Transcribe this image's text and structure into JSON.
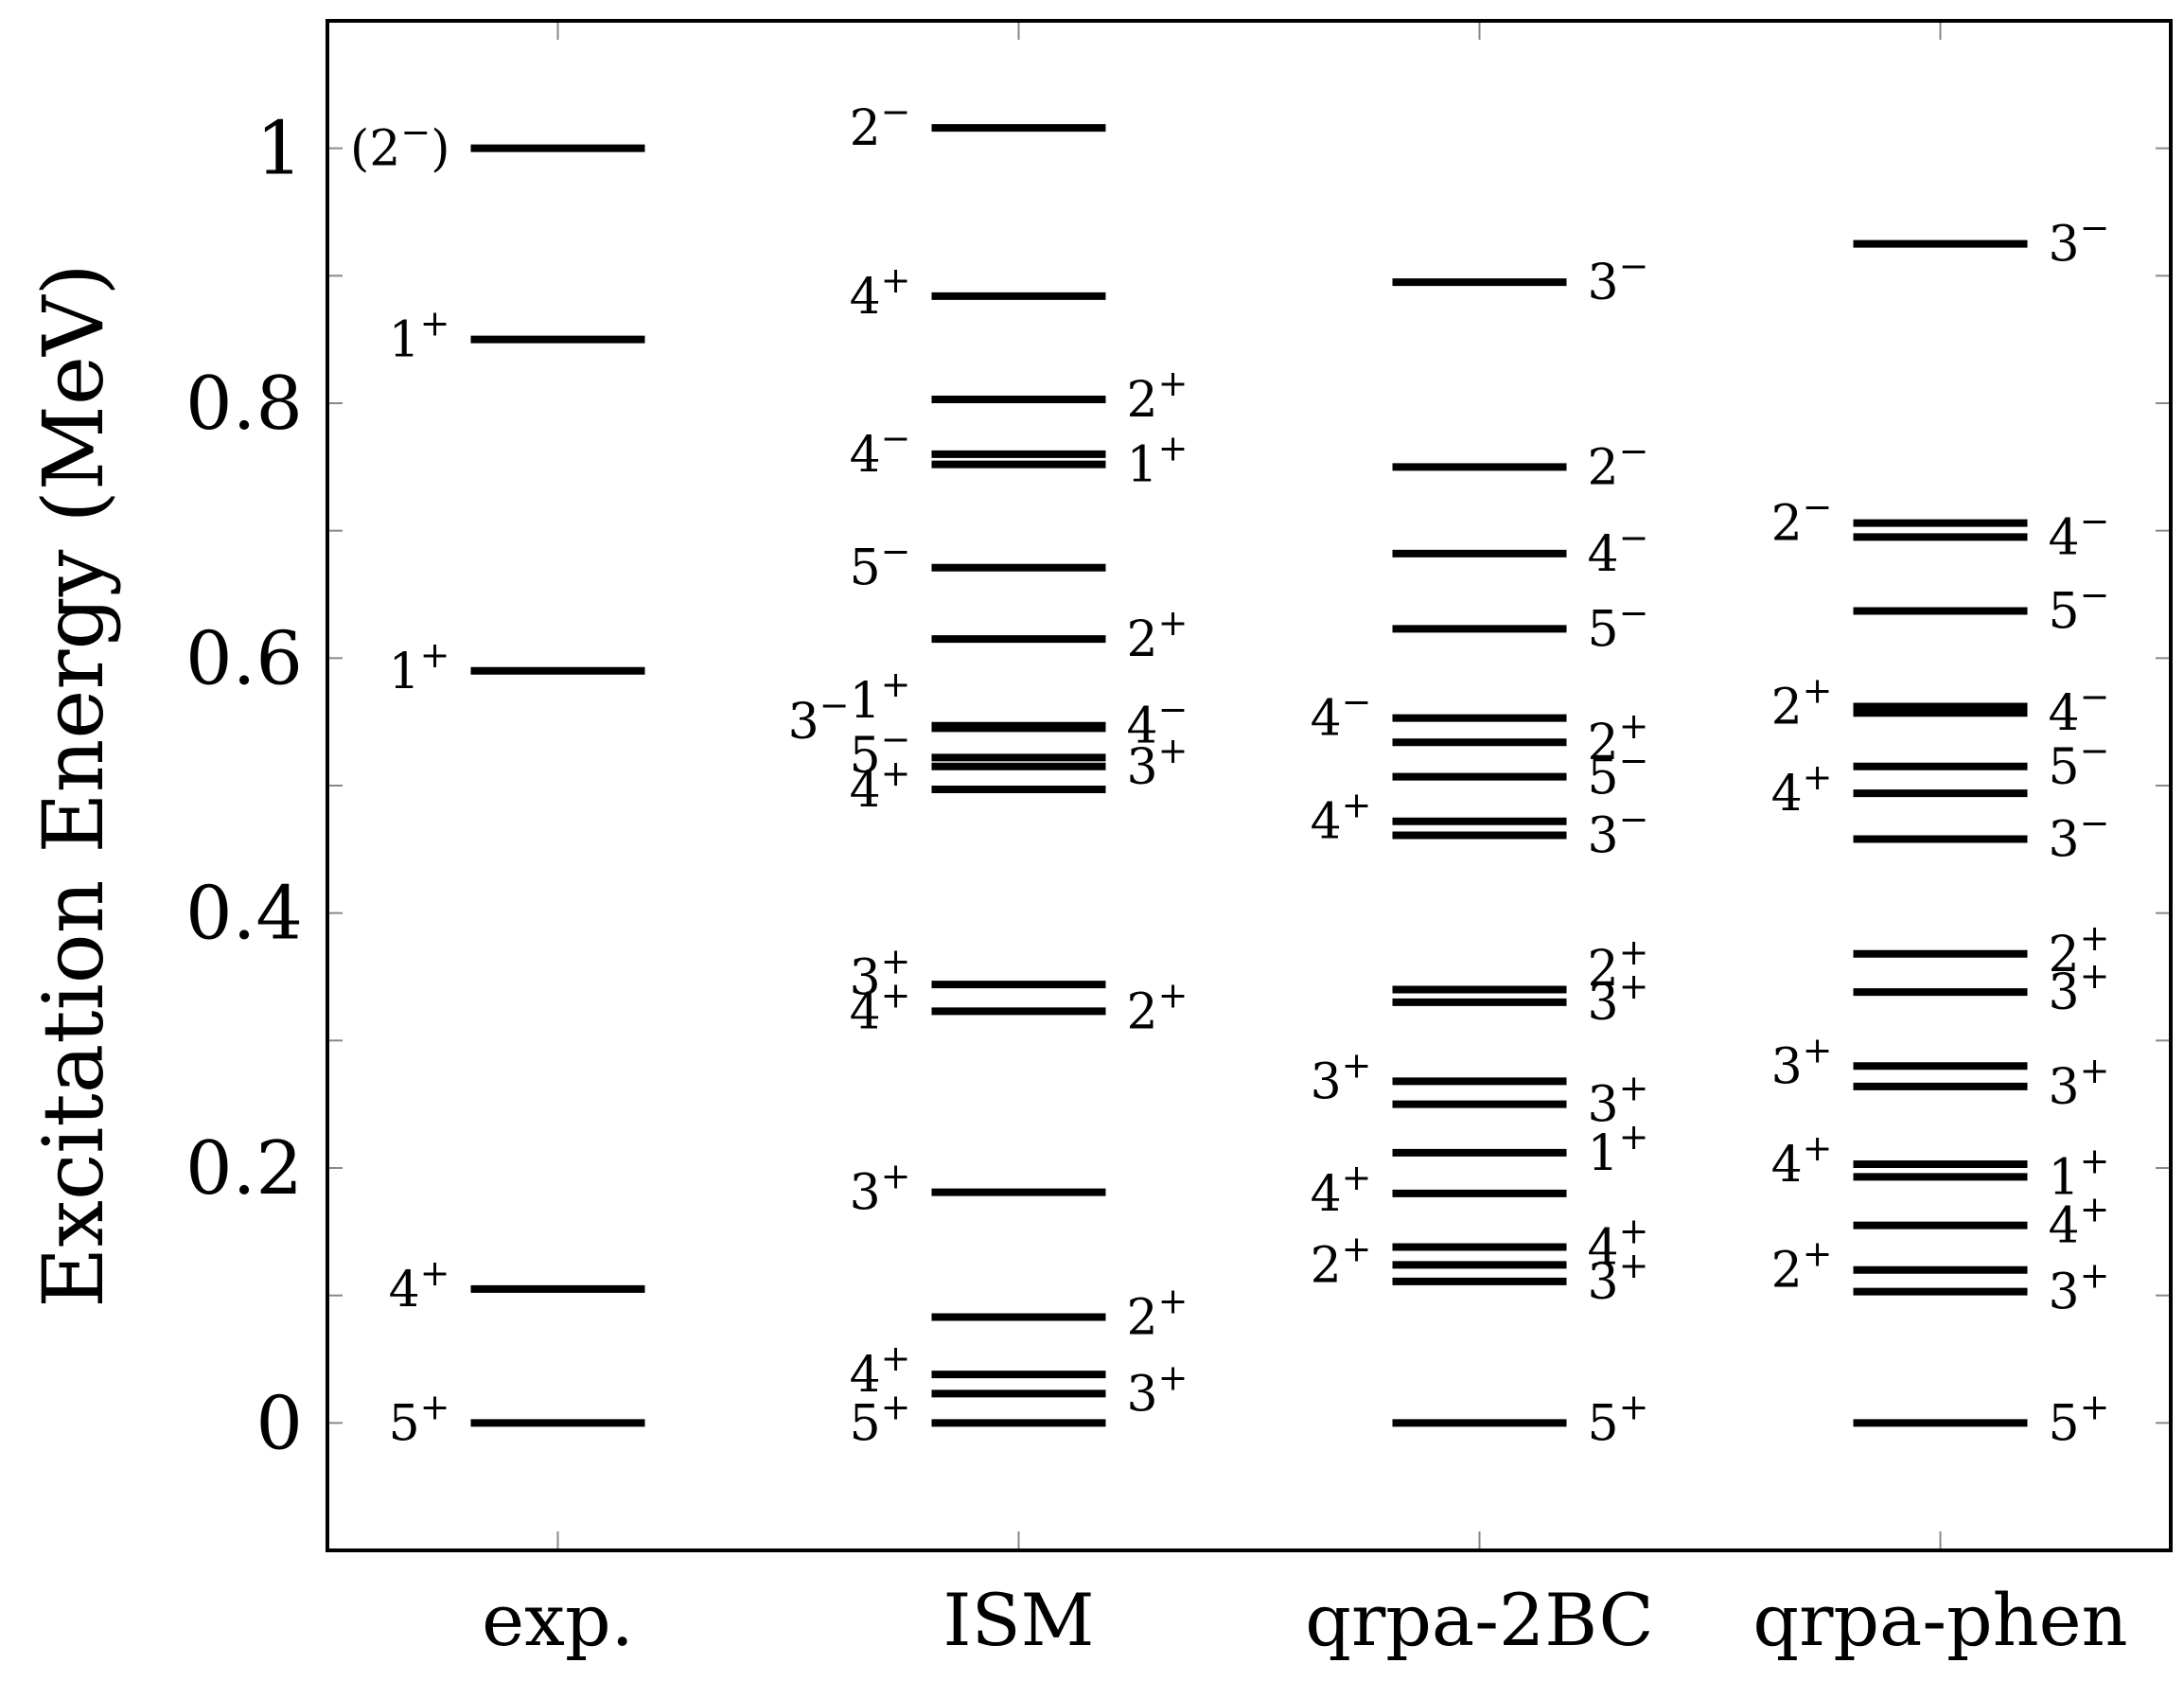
{
  "chart_data": {
    "type": "level-scheme",
    "title": "",
    "xlabel": "",
    "ylabel": "Excitation Energy (MeV)",
    "ylim": [
      -0.1,
      1.1
    ],
    "yticks": [
      {
        "value": 0,
        "label": "0"
      },
      {
        "value": 0.2,
        "label": "0.2"
      },
      {
        "value": 0.4,
        "label": "0.4"
      },
      {
        "value": 0.6,
        "label": "0.6"
      },
      {
        "value": 0.8,
        "label": "0.8"
      },
      {
        "value": 1.0,
        "label": "1"
      }
    ],
    "minor_ytick_step": 0.1,
    "grid": false,
    "categories": [
      "exp.",
      "ISM",
      "qrpa-2BC",
      "qrpa-phen"
    ],
    "series": [
      {
        "levels": [
          {
            "energy": 0.0,
            "spin": "5",
            "parity": "+",
            "side": "left"
          },
          {
            "energy": 0.105,
            "spin": "4",
            "parity": "+",
            "side": "left"
          },
          {
            "energy": 0.59,
            "spin": "1",
            "parity": "+",
            "side": "left"
          },
          {
            "energy": 0.85,
            "spin": "1",
            "parity": "+",
            "side": "left"
          },
          {
            "energy": 1.0,
            "spin": "2",
            "parity": "−",
            "side": "left",
            "tentative": true
          }
        ]
      },
      {
        "levels": [
          {
            "energy": 0.0,
            "spin": "5",
            "parity": "+",
            "side": "left"
          },
          {
            "energy": 0.023,
            "spin": "3",
            "parity": "+",
            "side": "right"
          },
          {
            "energy": 0.038,
            "spin": "4",
            "parity": "+",
            "side": "left"
          },
          {
            "energy": 0.083,
            "spin": "2",
            "parity": "+",
            "side": "right"
          },
          {
            "energy": 0.181,
            "spin": "3",
            "parity": "+",
            "side": "left"
          },
          {
            "energy": 0.323,
            "spin": "2",
            "parity": "+",
            "side": "right"
          },
          {
            "energy": 0.323,
            "spin": "4",
            "parity": "+",
            "side": "left"
          },
          {
            "energy": 0.344,
            "spin": "3",
            "parity": "+",
            "side": "left"
          },
          {
            "energy": 0.497,
            "spin": "4",
            "parity": "+",
            "side": "left"
          },
          {
            "energy": 0.515,
            "spin": "3",
            "parity": "+",
            "side": "right"
          },
          {
            "energy": 0.522,
            "spin": "5",
            "parity": "−",
            "side": "left"
          },
          {
            "energy": 0.545,
            "spin": "3",
            "parity": "−",
            "side": "left"
          },
          {
            "energy": 0.547,
            "spin": "1",
            "parity": "+",
            "side": "left"
          },
          {
            "energy": 0.547,
            "spin": "4",
            "parity": "−",
            "side": "right"
          },
          {
            "energy": 0.615,
            "spin": "2",
            "parity": "+",
            "side": "right"
          },
          {
            "energy": 0.671,
            "spin": "5",
            "parity": "−",
            "side": "left"
          },
          {
            "energy": 0.752,
            "spin": "1",
            "parity": "+",
            "side": "right"
          },
          {
            "energy": 0.76,
            "spin": "4",
            "parity": "−",
            "side": "left"
          },
          {
            "energy": 0.803,
            "spin": "2",
            "parity": "+",
            "side": "right"
          },
          {
            "energy": 0.884,
            "spin": "4",
            "parity": "+",
            "side": "left"
          },
          {
            "energy": 1.016,
            "spin": "2",
            "parity": "−",
            "side": "left"
          }
        ]
      },
      {
        "levels": [
          {
            "energy": 0.0,
            "spin": "5",
            "parity": "+",
            "side": "right"
          },
          {
            "energy": 0.111,
            "spin": "3",
            "parity": "+",
            "side": "right"
          },
          {
            "energy": 0.124,
            "spin": "2",
            "parity": "+",
            "side": "left"
          },
          {
            "energy": 0.138,
            "spin": "4",
            "parity": "+",
            "side": "right"
          },
          {
            "energy": 0.18,
            "spin": "4",
            "parity": "+",
            "side": "left"
          },
          {
            "energy": 0.212,
            "spin": "1",
            "parity": "+",
            "side": "right"
          },
          {
            "energy": 0.25,
            "spin": "3",
            "parity": "+",
            "side": "right"
          },
          {
            "energy": 0.268,
            "spin": "3",
            "parity": "+",
            "side": "left"
          },
          {
            "energy": 0.33,
            "spin": "3",
            "parity": "+",
            "side": "right"
          },
          {
            "energy": 0.34,
            "spin": "2",
            "parity": "+",
            "side": "right"
          },
          {
            "energy": 0.461,
            "spin": "3",
            "parity": "−",
            "side": "right"
          },
          {
            "energy": 0.472,
            "spin": "4",
            "parity": "+",
            "side": "left"
          },
          {
            "energy": 0.507,
            "spin": "5",
            "parity": "−",
            "side": "right"
          },
          {
            "energy": 0.534,
            "spin": "2",
            "parity": "+",
            "side": "right"
          },
          {
            "energy": 0.553,
            "spin": "4",
            "parity": "−",
            "side": "left"
          },
          {
            "energy": 0.623,
            "spin": "5",
            "parity": "−",
            "side": "right"
          },
          {
            "energy": 0.682,
            "spin": "4",
            "parity": "−",
            "side": "right"
          },
          {
            "energy": 0.75,
            "spin": "2",
            "parity": "−",
            "side": "right"
          },
          {
            "energy": 0.895,
            "spin": "3",
            "parity": "−",
            "side": "right"
          }
        ]
      },
      {
        "levels": [
          {
            "energy": 0.0,
            "spin": "5",
            "parity": "+",
            "side": "right"
          },
          {
            "energy": 0.103,
            "spin": "3",
            "parity": "+",
            "side": "right"
          },
          {
            "energy": 0.12,
            "spin": "2",
            "parity": "+",
            "side": "left"
          },
          {
            "energy": 0.155,
            "spin": "4",
            "parity": "+",
            "side": "right"
          },
          {
            "energy": 0.193,
            "spin": "1",
            "parity": "+",
            "side": "right"
          },
          {
            "energy": 0.203,
            "spin": "4",
            "parity": "+",
            "side": "left"
          },
          {
            "energy": 0.264,
            "spin": "3",
            "parity": "+",
            "side": "right"
          },
          {
            "energy": 0.28,
            "spin": "3",
            "parity": "+",
            "side": "left"
          },
          {
            "energy": 0.338,
            "spin": "3",
            "parity": "+",
            "side": "right"
          },
          {
            "energy": 0.368,
            "spin": "2",
            "parity": "+",
            "side": "right"
          },
          {
            "energy": 0.458,
            "spin": "3",
            "parity": "−",
            "side": "right"
          },
          {
            "energy": 0.494,
            "spin": "4",
            "parity": "+",
            "side": "left"
          },
          {
            "energy": 0.515,
            "spin": "5",
            "parity": "−",
            "side": "right"
          },
          {
            "energy": 0.557,
            "spin": "4",
            "parity": "−",
            "side": "right"
          },
          {
            "energy": 0.562,
            "spin": "2",
            "parity": "+",
            "side": "left"
          },
          {
            "energy": 0.637,
            "spin": "5",
            "parity": "−",
            "side": "right"
          },
          {
            "energy": 0.695,
            "spin": "4",
            "parity": "−",
            "side": "right"
          },
          {
            "energy": 0.706,
            "spin": "2",
            "parity": "−",
            "side": "left"
          },
          {
            "energy": 0.925,
            "spin": "3",
            "parity": "−",
            "side": "right"
          }
        ]
      }
    ]
  }
}
